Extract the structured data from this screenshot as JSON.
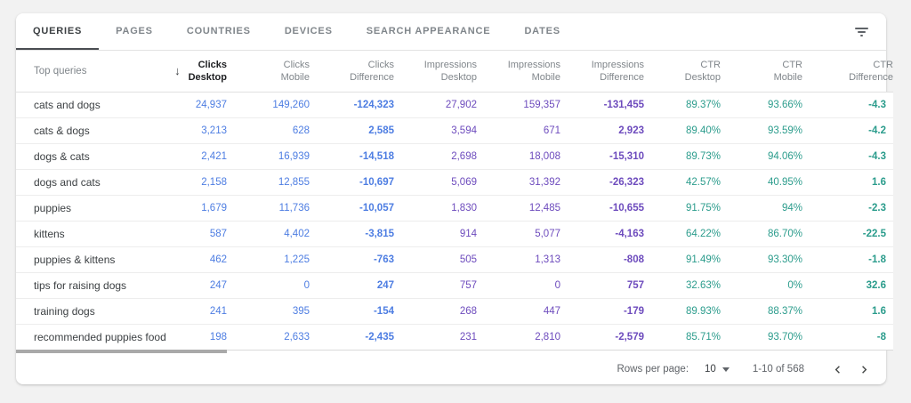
{
  "tabs": [
    {
      "label": "QUERIES",
      "active": true
    },
    {
      "label": "PAGES",
      "active": false
    },
    {
      "label": "COUNTRIES",
      "active": false
    },
    {
      "label": "DEVICES",
      "active": false
    },
    {
      "label": "SEARCH APPEARANCE",
      "active": false
    },
    {
      "label": "DATES",
      "active": false
    }
  ],
  "toolbar": {
    "filter_icon": "filter-icon"
  },
  "table": {
    "row_header_label": "Top queries",
    "sort_icon": "arrow-down-icon",
    "sort_glyph": "↓",
    "columns": [
      {
        "line1": "Clicks",
        "line2": "Desktop",
        "group": "clicks",
        "sorted": true,
        "diff": false
      },
      {
        "line1": "Clicks",
        "line2": "Mobile",
        "group": "clicks",
        "sorted": false,
        "diff": false
      },
      {
        "line1": "Clicks",
        "line2": "Difference",
        "group": "clicks",
        "sorted": false,
        "diff": true
      },
      {
        "line1": "Impressions",
        "line2": "Desktop",
        "group": "impressions",
        "sorted": false,
        "diff": false
      },
      {
        "line1": "Impressions",
        "line2": "Mobile",
        "group": "impressions",
        "sorted": false,
        "diff": false
      },
      {
        "line1": "Impressions",
        "line2": "Difference",
        "group": "impressions",
        "sorted": false,
        "diff": true
      },
      {
        "line1": "CTR",
        "line2": "Desktop",
        "group": "ctr",
        "sorted": false,
        "diff": false
      },
      {
        "line1": "CTR",
        "line2": "Mobile",
        "group": "ctr",
        "sorted": false,
        "diff": false
      },
      {
        "line1": "CTR",
        "line2": "Difference",
        "group": "ctr",
        "sorted": false,
        "diff": true
      }
    ],
    "rows": [
      {
        "query": "cats and dogs",
        "values": [
          "24,937",
          "149,260",
          "-124,323",
          "27,902",
          "159,357",
          "-131,455",
          "89.37%",
          "93.66%",
          "-4.3"
        ]
      },
      {
        "query": "cats & dogs",
        "values": [
          "3,213",
          "628",
          "2,585",
          "3,594",
          "671",
          "2,923",
          "89.40%",
          "93.59%",
          "-4.2"
        ]
      },
      {
        "query": "dogs & cats",
        "values": [
          "2,421",
          "16,939",
          "-14,518",
          "2,698",
          "18,008",
          "-15,310",
          "89.73%",
          "94.06%",
          "-4.3"
        ]
      },
      {
        "query": "dogs and cats",
        "values": [
          "2,158",
          "12,855",
          "-10,697",
          "5,069",
          "31,392",
          "-26,323",
          "42.57%",
          "40.95%",
          "1.6"
        ]
      },
      {
        "query": "puppies",
        "values": [
          "1,679",
          "11,736",
          "-10,057",
          "1,830",
          "12,485",
          "-10,655",
          "91.75%",
          "94%",
          "-2.3"
        ]
      },
      {
        "query": "kittens",
        "values": [
          "587",
          "4,402",
          "-3,815",
          "914",
          "5,077",
          "-4,163",
          "64.22%",
          "86.70%",
          "-22.5"
        ]
      },
      {
        "query": "puppies & kittens",
        "values": [
          "462",
          "1,225",
          "-763",
          "505",
          "1,313",
          "-808",
          "91.49%",
          "93.30%",
          "-1.8"
        ]
      },
      {
        "query": "tips for raising dogs",
        "values": [
          "247",
          "0",
          "247",
          "757",
          "0",
          "757",
          "32.63%",
          "0%",
          "32.6"
        ]
      },
      {
        "query": "training dogs",
        "values": [
          "241",
          "395",
          "-154",
          "268",
          "447",
          "-179",
          "89.93%",
          "88.37%",
          "1.6"
        ]
      },
      {
        "query": "recommended puppies food",
        "values": [
          "198",
          "2,633",
          "-2,435",
          "231",
          "2,810",
          "-2,579",
          "85.71%",
          "93.70%",
          "-8"
        ]
      }
    ]
  },
  "pagination": {
    "rows_per_page_label": "Rows per page:",
    "rows_per_page_value": "10",
    "range_label": "1-10 of 568"
  },
  "colors": {
    "clicks": "#4d7de2",
    "impressions": "#6d4bbd",
    "ctr": "#2b9c8c",
    "active_tab_underline": "#4a4d51"
  }
}
